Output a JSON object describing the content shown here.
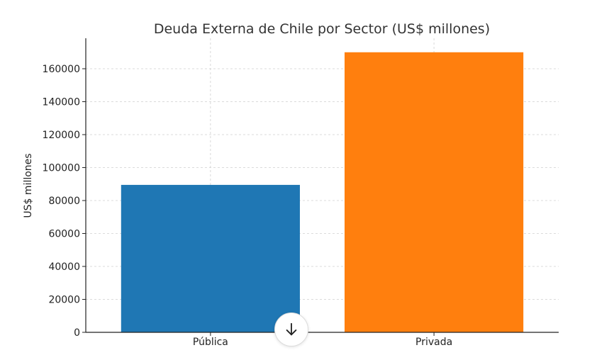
{
  "chart_data": {
    "type": "bar",
    "title": "Deuda Externa de Chile por Sector (US$ millones)",
    "xlabel": "",
    "ylabel": "US$ millones",
    "categories": [
      "Pública",
      "Privada"
    ],
    "values": [
      89500,
      170000
    ],
    "colors": [
      "#1f77b4",
      "#ff7f0e"
    ],
    "ylim": [
      0,
      178500
    ],
    "yticks": [
      0,
      20000,
      40000,
      60000,
      80000,
      100000,
      120000,
      140000,
      160000
    ],
    "grid": true,
    "legend": "none"
  },
  "controls": {
    "scroll_down_icon": "arrow-down-icon"
  }
}
